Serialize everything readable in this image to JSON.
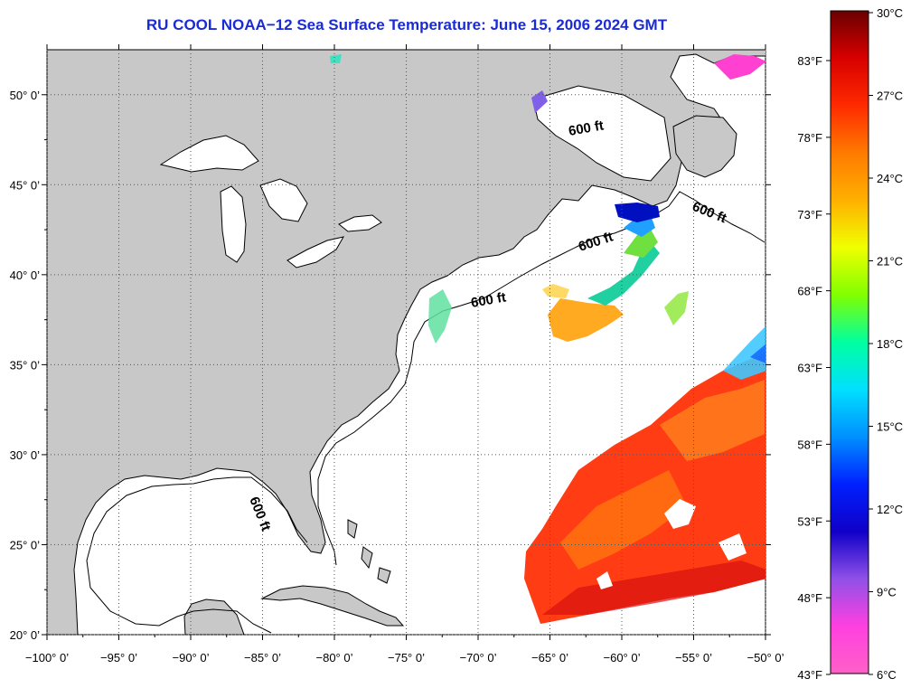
{
  "title": "RU COOL  NOAA−12  Sea Surface Temperature:  June 15, 2006 2024 GMT",
  "map": {
    "lon_range": [
      -100,
      -50
    ],
    "lat_range": [
      20,
      52.5
    ],
    "lon_ticks": [
      {
        "value": -100,
        "label": "−100° 0’"
      },
      {
        "value": -95,
        "label": "−95° 0’"
      },
      {
        "value": -90,
        "label": "−90° 0’"
      },
      {
        "value": -85,
        "label": "−85° 0’"
      },
      {
        "value": -80,
        "label": "−80° 0’"
      },
      {
        "value": -75,
        "label": "−75° 0’"
      },
      {
        "value": -70,
        "label": "−70° 0’"
      },
      {
        "value": -65,
        "label": "−65° 0’"
      },
      {
        "value": -60,
        "label": "−60° 0’"
      },
      {
        "value": -55,
        "label": "−55° 0’"
      },
      {
        "value": -50,
        "label": "−50° 0’"
      }
    ],
    "lat_ticks": [
      {
        "value": 20,
        "label": "20° 0’"
      },
      {
        "value": 25,
        "label": "25° 0’"
      },
      {
        "value": 30,
        "label": "30° 0’"
      },
      {
        "value": 35,
        "label": "35° 0’"
      },
      {
        "value": 40,
        "label": "40° 0’"
      },
      {
        "value": 45,
        "label": "45° 0’"
      },
      {
        "value": 50,
        "label": "50° 0’"
      }
    ],
    "depth_contour_label": "600 ft",
    "land_color": "#c8c8c8",
    "water_color": "#ffffff"
  },
  "colorbar": {
    "celsius_labels": [
      "30°C",
      "27°C",
      "24°C",
      "21°C",
      "18°C",
      "15°C",
      "12°C",
      "9°C",
      "6°C"
    ],
    "fahrenheit_labels": [
      "83°F",
      "78°F",
      "73°F",
      "68°F",
      "63°F",
      "58°F",
      "53°F",
      "48°F",
      "43°F"
    ],
    "gradient_stops": [
      "#6a0000",
      "#d80000",
      "#ff2a00",
      "#ff7a00",
      "#ffb000",
      "#f0ff00",
      "#80ff00",
      "#00ffa0",
      "#00e0ff",
      "#0090ff",
      "#0020ff",
      "#1000c8",
      "#9050e8",
      "#ff40e0",
      "#ff60c8"
    ]
  }
}
